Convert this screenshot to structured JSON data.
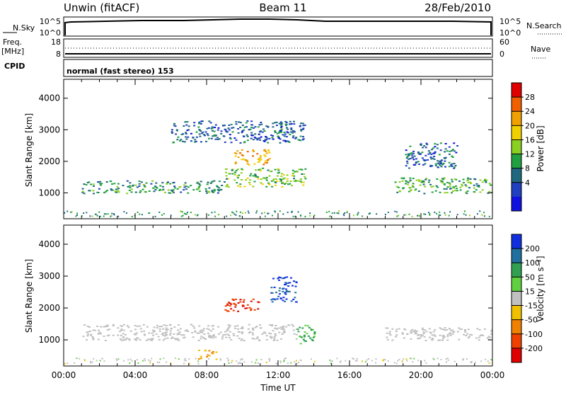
{
  "header": {
    "left": "Unwin (fitACF)",
    "center": "Beam 11",
    "right": "28/Feb/2010"
  },
  "top_panels": {
    "nsky_label": "N.Sky",
    "nsearch_label": "N.Search",
    "noise_ticks_left": [
      "10^5",
      "10^0"
    ],
    "noise_ticks_right": [
      "10^5",
      "10^0"
    ],
    "freq_label": "Freq.",
    "freq_unit": "[MHz]",
    "freq_ticks": [
      "18",
      "8"
    ],
    "nave_label": "Nave",
    "nave_ticks": [
      "60",
      "0"
    ],
    "cpid_label": "CPID",
    "cpid_value": "normal (fast stereo) 153"
  },
  "chart_data": [
    {
      "type": "heatmap",
      "ylabel": "Slant Range [km]",
      "xlabel": "",
      "xlim": [
        "00:00",
        "24:00"
      ],
      "ylim": [
        180,
        4600
      ],
      "y_ticks": [
        1000,
        2000,
        3000,
        4000
      ],
      "colorbar": {
        "label": "Power [dB]",
        "ticks": [
          28,
          24,
          20,
          16,
          12,
          8,
          4
        ],
        "colors": [
          "#e00000",
          "#f06000",
          "#f0a000",
          "#f0d000",
          "#8ad020",
          "#20a040",
          "#206880",
          "#2040c0",
          "#1010e0"
        ]
      },
      "regions": [
        {
          "x": [
            1.0,
            9.0
          ],
          "y": [
            1000,
            1400
          ],
          "level": 10
        },
        {
          "x": [
            9.0,
            13.5
          ],
          "y": [
            1200,
            1800
          ],
          "level": 14
        },
        {
          "x": [
            9.5,
            11.5
          ],
          "y": [
            1900,
            2400
          ],
          "level": 22
        },
        {
          "x": [
            6.0,
            13.5
          ],
          "y": [
            2600,
            3300
          ],
          "level": 6
        },
        {
          "x": [
            18.5,
            24.0
          ],
          "y": [
            1000,
            1500
          ],
          "level": 12
        },
        {
          "x": [
            19.0,
            22.0
          ],
          "y": [
            1800,
            2600
          ],
          "level": 6
        }
      ]
    },
    {
      "type": "heatmap",
      "ylabel": "Slant Range [km]",
      "xlabel": "Time UT",
      "xlim": [
        "00:00",
        "24:00"
      ],
      "ylim": [
        180,
        4600
      ],
      "x_ticks": [
        "00:00",
        "04:00",
        "08:00",
        "12:00",
        "16:00",
        "20:00",
        "00:00"
      ],
      "y_ticks": [
        1000,
        2000,
        3000,
        4000
      ],
      "colorbar": {
        "label": "Velocity [m s⁻¹]",
        "ticks": [
          200,
          100,
          50,
          15,
          -15,
          -50,
          -100,
          -200
        ],
        "colors": [
          "#1030e0",
          "#2070a0",
          "#30a050",
          "#60d040",
          "#c0c0c0",
          "#f0c000",
          "#f08000",
          "#f04000",
          "#e00000"
        ]
      },
      "regions": [
        {
          "x": [
            1.0,
            13.0
          ],
          "y": [
            1000,
            1500
          ],
          "value": 0
        },
        {
          "x": [
            9.0,
            11.0
          ],
          "y": [
            1900,
            2300
          ],
          "value": -200
        },
        {
          "x": [
            11.5,
            13.0
          ],
          "y": [
            2200,
            3000
          ],
          "value": 200
        },
        {
          "x": [
            13.0,
            14.0
          ],
          "y": [
            900,
            1500
          ],
          "value": 60
        },
        {
          "x": [
            7.5,
            8.5
          ],
          "y": [
            400,
            700
          ],
          "value": -50
        },
        {
          "x": [
            18.0,
            24.0
          ],
          "y": [
            1000,
            1400
          ],
          "value": 0
        }
      ]
    }
  ]
}
